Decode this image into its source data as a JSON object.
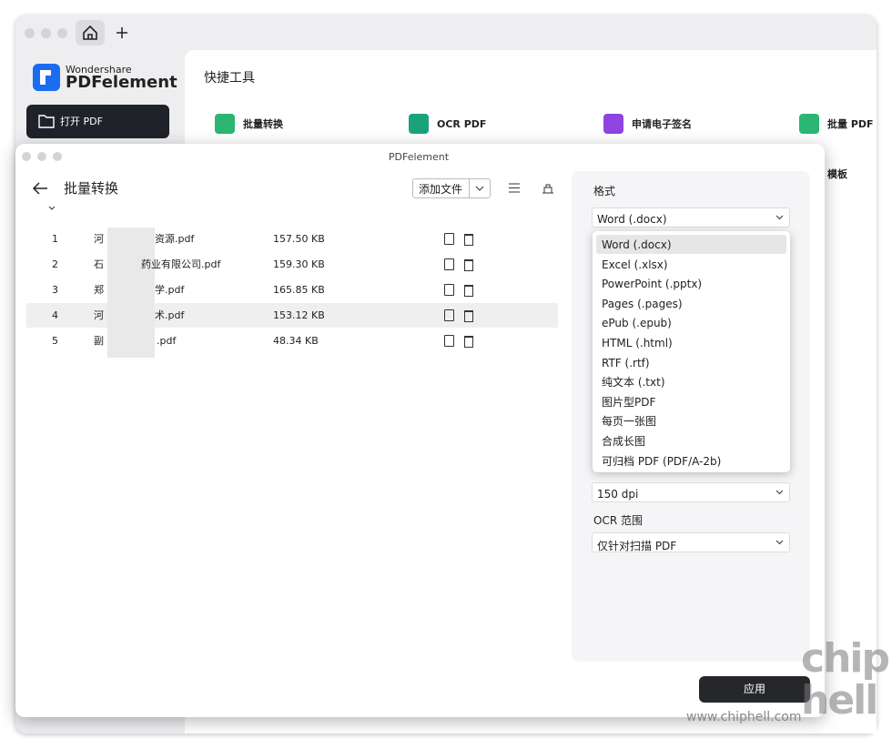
{
  "brand": {
    "company": "Wondershare",
    "product": "PDFelement"
  },
  "sidebar": {
    "open_button": "打开 PDF"
  },
  "main": {
    "section_title": "快捷工具",
    "tools": [
      "批量转换",
      "OCR PDF",
      "申请电子签名",
      "批量 PDF"
    ],
    "tool_below": "模板"
  },
  "dialog": {
    "window_title": "PDFelement",
    "title": "批量转换",
    "add_files": "添加文件",
    "files": [
      {
        "index": 1,
        "name_start": "河",
        "name_end": "资源.pdf",
        "size": "157.50 KB"
      },
      {
        "index": 2,
        "name_start": "石",
        "name_end": "药业有限公司.pdf",
        "size": "159.30 KB"
      },
      {
        "index": 3,
        "name_start": "郑",
        "name_end": "学.pdf",
        "size": "165.85 KB"
      },
      {
        "index": 4,
        "name_start": "河",
        "name_end": "术.pdf",
        "size": "153.12 KB"
      },
      {
        "index": 5,
        "name_start": "副",
        "name_end": ".pdf",
        "size": "48.34 KB"
      }
    ],
    "settings": {
      "format_label": "格式",
      "format_value": "Word (.docx)",
      "format_options": [
        "Word (.docx)",
        "Excel (.xlsx)",
        "PowerPoint (.pptx)",
        "Pages (.pages)",
        "ePub (.epub)",
        "HTML (.html)",
        "RTF (.rtf)",
        "纯文本 (.txt)",
        "图片型PDF",
        "每页一张图",
        "合成长图",
        "可归档 PDF (PDF/A-2b)"
      ],
      "dpi_value": "150 dpi",
      "ocr_label": "OCR 范围",
      "ocr_value": "仅针对扫描 PDF",
      "apply": "应用"
    }
  },
  "watermark": {
    "logo_top": "chip",
    "logo_bottom": "hell",
    "url": "www.chiphell.com"
  }
}
